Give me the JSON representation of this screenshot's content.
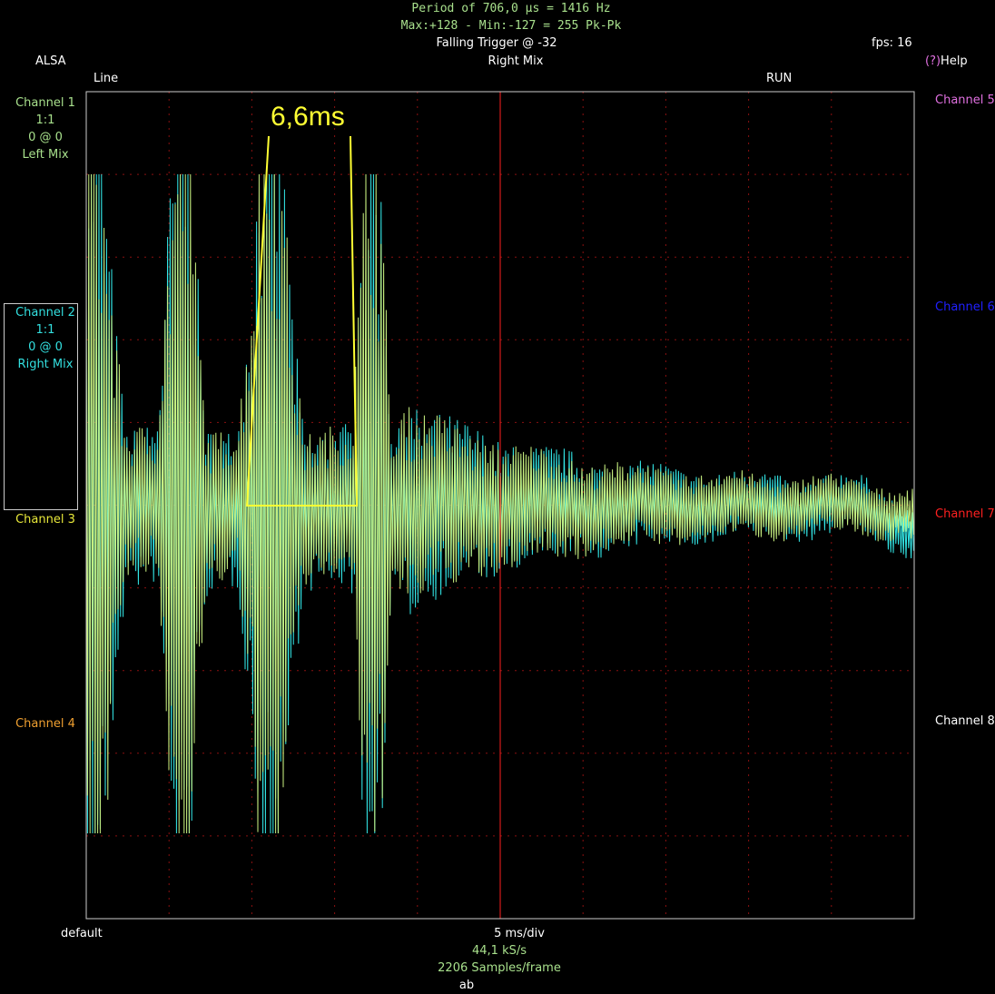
{
  "header": {
    "period_line": "Period of 706,0 µs =  1416 Hz",
    "maxmin_line": "Max:+128 - Min:-127 = 255 Pk-Pk",
    "trigger": "Falling Trigger @ -32",
    "fps": "fps: 16",
    "source": "ALSA",
    "mix": "Right Mix",
    "help_prefix": "(?)",
    "help_label": "Help",
    "line": "Line",
    "run": "RUN"
  },
  "left_channels": [
    {
      "name": "Channel 1",
      "lines": [
        "1:1",
        "0 @ 0",
        "Left Mix"
      ],
      "color": "#a8e08c"
    },
    {
      "name": "Channel 2",
      "lines": [
        "1:1",
        "0 @ 0",
        "Right Mix"
      ],
      "color": "#33e0e0"
    },
    {
      "name": "Channel 3",
      "lines": [],
      "color": "#e8e83a"
    },
    {
      "name": "Channel 4",
      "lines": [],
      "color": "#f0a030"
    }
  ],
  "right_channels": [
    {
      "name": "Channel 5",
      "color": "#e070e0"
    },
    {
      "name": "Channel 6",
      "color": "#2020ff"
    },
    {
      "name": "Channel 7",
      "color": "#ff2020"
    },
    {
      "name": "Channel 8",
      "color": "#ffffff"
    }
  ],
  "footer": {
    "preset": "default",
    "timebase": "5 ms/div",
    "samplerate": "44,1 kS/s",
    "samples": "2206 Samples/frame",
    "mode": "ab"
  },
  "annotation": {
    "label": "6,6ms",
    "color": "#ffff33"
  },
  "colors": {
    "green_text": "#a8e08c",
    "grid": "#8a1010",
    "trigger_line": "#ff2020",
    "frame": "#cccccc",
    "ch1_trace": "#c8f080",
    "ch2_trace": "#33e8e8"
  },
  "scope": {
    "divisions_x": 10,
    "divisions_y": 10,
    "trigger_position_div": 5,
    "ms_per_div": 5,
    "amplitude_range": [
      -128,
      127
    ]
  }
}
